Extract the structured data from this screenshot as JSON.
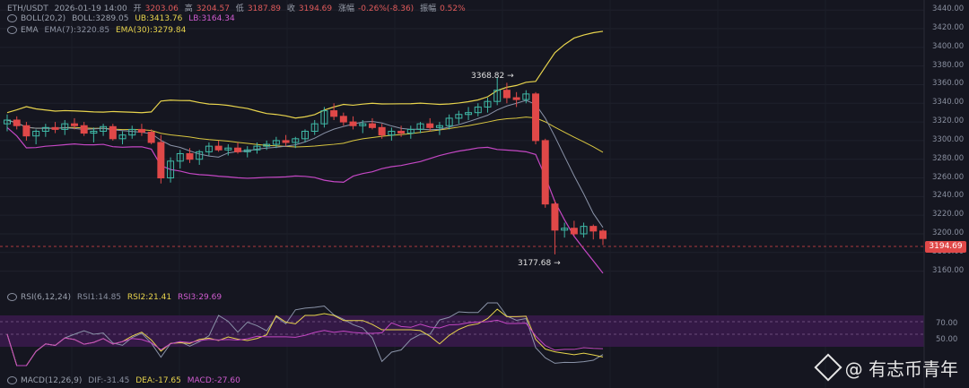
{
  "legend": {
    "symbol": "ETH/USDT",
    "datetime": "2026-01-19 14:00",
    "open_label": "开",
    "open": "3203.06",
    "high_label": "高",
    "high": "3204.57",
    "low_label": "低",
    "low": "3187.89",
    "close_label": "收",
    "close": "3194.69",
    "change_label": "涨幅",
    "change": "-0.26%(-8.36)",
    "amp_label": "振幅",
    "amp": "0.52%"
  },
  "boll": {
    "label": "BOLL(20,2)",
    "mid": "BOLL:3289.05",
    "ub": "UB:3413.76",
    "lb": "LB:3164.34"
  },
  "ema": {
    "label": "EMA",
    "ema7": "EMA(7):3220.85",
    "ema30": "EMA(30):3279.84"
  },
  "rsi": {
    "label": "RSI(6,12,24)",
    "rsi1": "RSI1:14.85",
    "rsi2": "RSI2:21.41",
    "rsi3": "RSI3:29.69",
    "level70": "70.00",
    "level50": "50.00"
  },
  "macd": {
    "label": "MACD(12,26,9)",
    "dif": "DIF:-31.45",
    "dea": "DEA:-17.65",
    "macd": "MACD:-27.60"
  },
  "annotations": {
    "high": "3368.82",
    "low": "3177.68"
  },
  "current_price": "3194.69",
  "watermark": "@ 有志币青年",
  "axis_ticks": [
    "3440.00",
    "3420.00",
    "3400.00",
    "3380.00",
    "3360.00",
    "3340.00",
    "3320.00",
    "3300.00",
    "3280.00",
    "3260.00",
    "3240.00",
    "3220.00",
    "3200.00",
    "3180.00",
    "3160.00"
  ],
  "chart_data": {
    "type": "candlestick",
    "symbol": "ETH/USDT",
    "interval_note": "hourly candles",
    "y_range": [
      3150,
      3445
    ],
    "candles": [
      [
        3318,
        3328,
        3310,
        3322
      ],
      [
        3322,
        3326,
        3312,
        3316
      ],
      [
        3316,
        3320,
        3300,
        3305
      ],
      [
        3305,
        3312,
        3296,
        3310
      ],
      [
        3310,
        3318,
        3304,
        3314
      ],
      [
        3314,
        3320,
        3308,
        3312
      ],
      [
        3312,
        3322,
        3306,
        3318
      ],
      [
        3318,
        3324,
        3312,
        3316
      ],
      [
        3316,
        3320,
        3305,
        3308
      ],
      [
        3308,
        3314,
        3298,
        3310
      ],
      [
        3310,
        3318,
        3305,
        3315
      ],
      [
        3315,
        3318,
        3300,
        3302
      ],
      [
        3302,
        3310,
        3296,
        3306
      ],
      [
        3306,
        3316,
        3302,
        3312
      ],
      [
        3312,
        3318,
        3305,
        3309
      ],
      [
        3309,
        3312,
        3296,
        3298
      ],
      [
        3298,
        3306,
        3254,
        3260
      ],
      [
        3260,
        3282,
        3255,
        3278
      ],
      [
        3278,
        3290,
        3270,
        3286
      ],
      [
        3286,
        3292,
        3276,
        3280
      ],
      [
        3280,
        3290,
        3274,
        3288
      ],
      [
        3288,
        3298,
        3284,
        3294
      ],
      [
        3294,
        3300,
        3288,
        3290
      ],
      [
        3290,
        3296,
        3284,
        3292
      ],
      [
        3292,
        3298,
        3286,
        3288
      ],
      [
        3288,
        3294,
        3282,
        3290
      ],
      [
        3290,
        3298,
        3286,
        3294
      ],
      [
        3294,
        3300,
        3290,
        3296
      ],
      [
        3296,
        3304,
        3292,
        3300
      ],
      [
        3300,
        3306,
        3294,
        3298
      ],
      [
        3298,
        3304,
        3292,
        3302
      ],
      [
        3302,
        3312,
        3298,
        3310
      ],
      [
        3310,
        3322,
        3306,
        3318
      ],
      [
        3318,
        3336,
        3314,
        3332
      ],
      [
        3332,
        3340,
        3322,
        3326
      ],
      [
        3326,
        3330,
        3316,
        3320
      ],
      [
        3320,
        3326,
        3312,
        3316
      ],
      [
        3316,
        3322,
        3308,
        3318
      ],
      [
        3318,
        3324,
        3312,
        3314
      ],
      [
        3314,
        3318,
        3302,
        3306
      ],
      [
        3306,
        3314,
        3300,
        3310
      ],
      [
        3310,
        3316,
        3304,
        3308
      ],
      [
        3308,
        3316,
        3302,
        3312
      ],
      [
        3312,
        3320,
        3308,
        3318
      ],
      [
        3318,
        3324,
        3310,
        3314
      ],
      [
        3314,
        3320,
        3306,
        3316
      ],
      [
        3316,
        3328,
        3312,
        3324
      ],
      [
        3324,
        3332,
        3318,
        3328
      ],
      [
        3328,
        3336,
        3322,
        3330
      ],
      [
        3330,
        3340,
        3326,
        3336
      ],
      [
        3336,
        3346,
        3330,
        3342
      ],
      [
        3342,
        3368,
        3338,
        3354
      ],
      [
        3354,
        3362,
        3340,
        3346
      ],
      [
        3346,
        3352,
        3336,
        3344
      ],
      [
        3344,
        3354,
        3340,
        3350
      ],
      [
        3350,
        3352,
        3296,
        3300
      ],
      [
        3300,
        3302,
        3228,
        3232
      ],
      [
        3232,
        3236,
        3178,
        3204
      ],
      [
        3204,
        3212,
        3196,
        3206
      ],
      [
        3206,
        3214,
        3198,
        3200
      ],
      [
        3200,
        3212,
        3196,
        3208
      ],
      [
        3208,
        3210,
        3194,
        3203
      ],
      [
        3203,
        3205,
        3188,
        3195
      ]
    ],
    "boll": {
      "mid": 3289.05,
      "ub": 3413.76,
      "lb": 3164.34
    },
    "ema": {
      "ema7": 3220.85,
      "ema30": 3279.84
    },
    "rsi": {
      "rsi1": 14.85,
      "rsi2": 21.41,
      "rsi3": 29.69,
      "levels": [
        70,
        50
      ]
    },
    "macd": {
      "dif": -31.45,
      "dea": -17.65,
      "macd": -27.6
    },
    "annotations": [
      {
        "label": "3368.82",
        "kind": "high"
      },
      {
        "label": "3177.68",
        "kind": "low"
      }
    ],
    "last_price": 3194.69
  }
}
